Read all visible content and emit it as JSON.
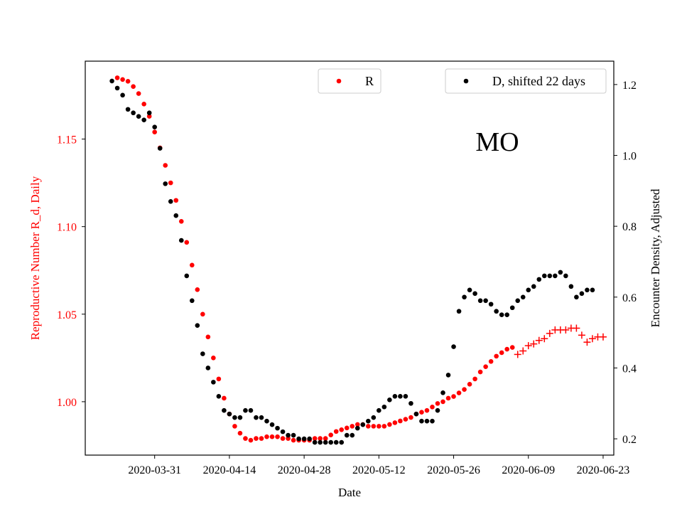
{
  "chart_data": {
    "type": "scatter",
    "annotation": "MO",
    "xlabel": "Date",
    "ylabel_left": "Reproductive Number R_d, Daily",
    "ylabel_right": "Encounter Density, Adjusted",
    "x_ticks": [
      "2020-03-31",
      "2020-04-14",
      "2020-04-28",
      "2020-05-12",
      "2020-05-26",
      "2020-06-09",
      "2020-06-23"
    ],
    "y_left_ticks": [
      "1.00",
      "1.05",
      "1.10",
      "1.15"
    ],
    "y_right_ticks": [
      "0.2",
      "0.4",
      "0.6",
      "0.8",
      "1.0",
      "1.2"
    ],
    "x_range": [
      "2020-03-18",
      "2020-06-25"
    ],
    "y_left_range": [
      0.9695,
      1.1945
    ],
    "y_right_range": [
      0.154,
      1.266
    ],
    "grid": false,
    "legend_r": {
      "label": "R",
      "placement": "top-center"
    },
    "legend_d": {
      "label": "D, shifted 22 days",
      "placement": "top-right"
    },
    "colors": {
      "r": "#ff0000",
      "d": "#000000",
      "left_axis_text": "#ff0000",
      "right_axis_text": "#000000"
    },
    "series": [
      {
        "name": "R",
        "axis": "left",
        "color": "#ff0000",
        "marker": "dot",
        "points": [
          [
            "2020-03-24",
            1.185
          ],
          [
            "2020-03-25",
            1.184
          ],
          [
            "2020-03-26",
            1.183
          ],
          [
            "2020-03-27",
            1.18
          ],
          [
            "2020-03-28",
            1.176
          ],
          [
            "2020-03-29",
            1.17
          ],
          [
            "2020-03-30",
            1.163
          ],
          [
            "2020-03-31",
            1.154
          ],
          [
            "2020-04-01",
            1.145
          ],
          [
            "2020-04-02",
            1.135
          ],
          [
            "2020-04-03",
            1.125
          ],
          [
            "2020-04-04",
            1.115
          ],
          [
            "2020-04-05",
            1.103
          ],
          [
            "2020-04-06",
            1.091
          ],
          [
            "2020-04-07",
            1.078
          ],
          [
            "2020-04-08",
            1.064
          ],
          [
            "2020-04-09",
            1.05
          ],
          [
            "2020-04-10",
            1.037
          ],
          [
            "2020-04-11",
            1.025
          ],
          [
            "2020-04-12",
            1.013
          ],
          [
            "2020-04-13",
            1.002
          ],
          [
            "2020-04-14",
            0.993
          ],
          [
            "2020-04-15",
            0.986
          ],
          [
            "2020-04-16",
            0.982
          ],
          [
            "2020-04-17",
            0.979
          ],
          [
            "2020-04-18",
            0.978
          ],
          [
            "2020-04-19",
            0.979
          ],
          [
            "2020-04-20",
            0.979
          ],
          [
            "2020-04-21",
            0.98
          ],
          [
            "2020-04-22",
            0.98
          ],
          [
            "2020-04-23",
            0.98
          ],
          [
            "2020-04-24",
            0.979
          ],
          [
            "2020-04-25",
            0.979
          ],
          [
            "2020-04-26",
            0.978
          ],
          [
            "2020-04-27",
            0.978
          ],
          [
            "2020-04-28",
            0.978
          ],
          [
            "2020-04-29",
            0.978
          ],
          [
            "2020-04-30",
            0.979
          ],
          [
            "2020-05-01",
            0.979
          ],
          [
            "2020-05-02",
            0.979
          ],
          [
            "2020-05-03",
            0.981
          ],
          [
            "2020-05-04",
            0.983
          ],
          [
            "2020-05-05",
            0.984
          ],
          [
            "2020-05-06",
            0.985
          ],
          [
            "2020-05-07",
            0.986
          ],
          [
            "2020-05-08",
            0.987
          ],
          [
            "2020-05-09",
            0.987
          ],
          [
            "2020-05-10",
            0.986
          ],
          [
            "2020-05-11",
            0.986
          ],
          [
            "2020-05-12",
            0.986
          ],
          [
            "2020-05-13",
            0.986
          ],
          [
            "2020-05-14",
            0.987
          ],
          [
            "2020-05-15",
            0.988
          ],
          [
            "2020-05-16",
            0.989
          ],
          [
            "2020-05-17",
            0.99
          ],
          [
            "2020-05-18",
            0.991
          ],
          [
            "2020-05-19",
            0.993
          ],
          [
            "2020-05-20",
            0.994
          ],
          [
            "2020-05-21",
            0.995
          ],
          [
            "2020-05-22",
            0.997
          ],
          [
            "2020-05-23",
            0.999
          ],
          [
            "2020-05-24",
            1.0
          ],
          [
            "2020-05-25",
            1.002
          ],
          [
            "2020-05-26",
            1.003
          ],
          [
            "2020-05-27",
            1.005
          ],
          [
            "2020-05-28",
            1.007
          ],
          [
            "2020-05-29",
            1.01
          ],
          [
            "2020-05-30",
            1.013
          ],
          [
            "2020-05-31",
            1.017
          ],
          [
            "2020-06-01",
            1.02
          ],
          [
            "2020-06-02",
            1.023
          ],
          [
            "2020-06-03",
            1.026
          ],
          [
            "2020-06-04",
            1.028
          ],
          [
            "2020-06-05",
            1.03
          ],
          [
            "2020-06-06",
            1.031
          ]
        ]
      },
      {
        "name": "R",
        "axis": "left",
        "color": "#ff0000",
        "marker": "plus",
        "points": [
          [
            "2020-06-07",
            1.027
          ],
          [
            "2020-06-08",
            1.029
          ],
          [
            "2020-06-09",
            1.032
          ],
          [
            "2020-06-10",
            1.033
          ],
          [
            "2020-06-11",
            1.035
          ],
          [
            "2020-06-12",
            1.036
          ],
          [
            "2020-06-13",
            1.039
          ],
          [
            "2020-06-14",
            1.041
          ],
          [
            "2020-06-15",
            1.041
          ],
          [
            "2020-06-16",
            1.041
          ],
          [
            "2020-06-17",
            1.042
          ],
          [
            "2020-06-18",
            1.042
          ],
          [
            "2020-06-19",
            1.038
          ],
          [
            "2020-06-20",
            1.034
          ],
          [
            "2020-06-21",
            1.036
          ],
          [
            "2020-06-22",
            1.037
          ],
          [
            "2020-06-23",
            1.037
          ]
        ]
      },
      {
        "name": "D, shifted 22 days",
        "axis": "right",
        "color": "#000000",
        "marker": "dot",
        "points": [
          [
            "2020-03-23",
            1.21
          ],
          [
            "2020-03-24",
            1.19
          ],
          [
            "2020-03-25",
            1.17
          ],
          [
            "2020-03-26",
            1.13
          ],
          [
            "2020-03-27",
            1.12
          ],
          [
            "2020-03-28",
            1.11
          ],
          [
            "2020-03-29",
            1.1
          ],
          [
            "2020-03-30",
            1.12
          ],
          [
            "2020-03-31",
            1.08
          ],
          [
            "2020-04-01",
            1.02
          ],
          [
            "2020-04-02",
            0.92
          ],
          [
            "2020-04-03",
            0.87
          ],
          [
            "2020-04-04",
            0.83
          ],
          [
            "2020-04-05",
            0.76
          ],
          [
            "2020-04-06",
            0.66
          ],
          [
            "2020-04-07",
            0.59
          ],
          [
            "2020-04-08",
            0.52
          ],
          [
            "2020-04-09",
            0.44
          ],
          [
            "2020-04-10",
            0.4
          ],
          [
            "2020-04-11",
            0.36
          ],
          [
            "2020-04-12",
            0.32
          ],
          [
            "2020-04-13",
            0.28
          ],
          [
            "2020-04-14",
            0.27
          ],
          [
            "2020-04-15",
            0.26
          ],
          [
            "2020-04-16",
            0.26
          ],
          [
            "2020-04-17",
            0.28
          ],
          [
            "2020-04-18",
            0.28
          ],
          [
            "2020-04-19",
            0.26
          ],
          [
            "2020-04-20",
            0.26
          ],
          [
            "2020-04-21",
            0.25
          ],
          [
            "2020-04-22",
            0.24
          ],
          [
            "2020-04-23",
            0.23
          ],
          [
            "2020-04-24",
            0.22
          ],
          [
            "2020-04-25",
            0.21
          ],
          [
            "2020-04-26",
            0.21
          ],
          [
            "2020-04-27",
            0.2
          ],
          [
            "2020-04-28",
            0.2
          ],
          [
            "2020-04-29",
            0.2
          ],
          [
            "2020-04-30",
            0.19
          ],
          [
            "2020-05-01",
            0.19
          ],
          [
            "2020-05-02",
            0.19
          ],
          [
            "2020-05-03",
            0.19
          ],
          [
            "2020-05-04",
            0.19
          ],
          [
            "2020-05-05",
            0.19
          ],
          [
            "2020-05-06",
            0.21
          ],
          [
            "2020-05-07",
            0.21
          ],
          [
            "2020-05-08",
            0.23
          ],
          [
            "2020-05-09",
            0.24
          ],
          [
            "2020-05-10",
            0.25
          ],
          [
            "2020-05-11",
            0.26
          ],
          [
            "2020-05-12",
            0.28
          ],
          [
            "2020-05-13",
            0.29
          ],
          [
            "2020-05-14",
            0.31
          ],
          [
            "2020-05-15",
            0.32
          ],
          [
            "2020-05-16",
            0.32
          ],
          [
            "2020-05-17",
            0.32
          ],
          [
            "2020-05-18",
            0.3
          ],
          [
            "2020-05-19",
            0.27
          ],
          [
            "2020-05-20",
            0.25
          ],
          [
            "2020-05-21",
            0.25
          ],
          [
            "2020-05-22",
            0.25
          ],
          [
            "2020-05-23",
            0.28
          ],
          [
            "2020-05-24",
            0.33
          ],
          [
            "2020-05-25",
            0.38
          ],
          [
            "2020-05-26",
            0.46
          ],
          [
            "2020-05-27",
            0.56
          ],
          [
            "2020-05-28",
            0.6
          ],
          [
            "2020-05-29",
            0.62
          ],
          [
            "2020-05-30",
            0.61
          ],
          [
            "2020-05-31",
            0.59
          ],
          [
            "2020-06-01",
            0.59
          ],
          [
            "2020-06-02",
            0.58
          ],
          [
            "2020-06-03",
            0.56
          ],
          [
            "2020-06-04",
            0.55
          ],
          [
            "2020-06-05",
            0.55
          ],
          [
            "2020-06-06",
            0.57
          ],
          [
            "2020-06-07",
            0.59
          ],
          [
            "2020-06-08",
            0.6
          ],
          [
            "2020-06-09",
            0.62
          ],
          [
            "2020-06-10",
            0.63
          ],
          [
            "2020-06-11",
            0.65
          ],
          [
            "2020-06-12",
            0.66
          ],
          [
            "2020-06-13",
            0.66
          ],
          [
            "2020-06-14",
            0.66
          ],
          [
            "2020-06-15",
            0.67
          ],
          [
            "2020-06-16",
            0.66
          ],
          [
            "2020-06-17",
            0.63
          ],
          [
            "2020-06-18",
            0.6
          ],
          [
            "2020-06-19",
            0.61
          ],
          [
            "2020-06-20",
            0.62
          ],
          [
            "2020-06-21",
            0.62
          ]
        ]
      }
    ]
  }
}
